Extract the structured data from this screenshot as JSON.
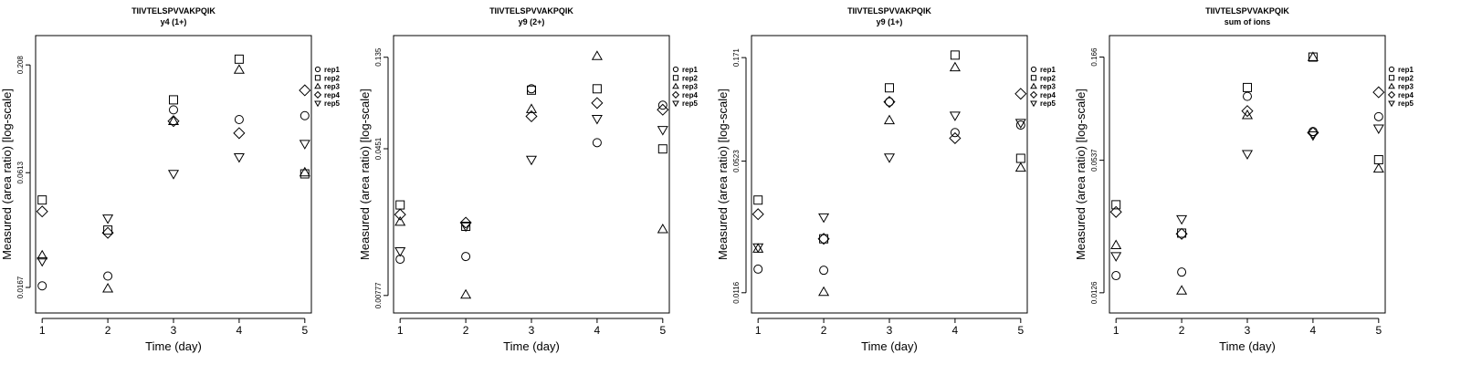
{
  "chart_data": [
    {
      "type": "scatter",
      "title": "TIIVTELSPVVAKPQIK",
      "subtitle": "y4 (1+)",
      "xlabel": "Time (day)",
      "ylabel": "Measured (area ratio) [log-scale]",
      "x_ticks": [
        1,
        2,
        3,
        4,
        5
      ],
      "y_ticks": [
        "0.0167",
        "0.0613",
        "0.208"
      ],
      "y_tick_values": [
        0.0167,
        0.0613,
        0.208
      ],
      "ylim": [
        0.0125,
        0.29
      ],
      "xlim": [
        0.9,
        5.1
      ],
      "legend": [
        "rep1",
        "rep2",
        "rep3",
        "rep4",
        "rep5"
      ],
      "series": [
        {
          "name": "rep1",
          "shape": "circle",
          "values": [
            0.017,
            0.019,
            0.125,
            0.112,
            0.117
          ]
        },
        {
          "name": "rep2",
          "shape": "square",
          "values": [
            0.045,
            0.032,
            0.14,
            0.222,
            0.0605
          ]
        },
        {
          "name": "rep3",
          "shape": "triangle",
          "values": [
            0.024,
            0.0165,
            0.11,
            0.197,
            0.0615
          ]
        },
        {
          "name": "rep4",
          "shape": "diamond",
          "values": [
            0.0395,
            0.031,
            0.11,
            0.096,
            0.156
          ]
        },
        {
          "name": "rep5",
          "shape": "triangle-down",
          "values": [
            0.0225,
            0.0365,
            0.0605,
            0.073,
            0.085
          ]
        }
      ]
    },
    {
      "type": "scatter",
      "title": "TIIVTELSPVVAKPQIK",
      "subtitle": "y9 (2+)",
      "xlabel": "Time (day)",
      "ylabel": "Measured (area ratio) [log-scale]",
      "x_ticks": [
        1,
        2,
        3,
        4,
        5
      ],
      "y_ticks": [
        "0.00777",
        "0.0451",
        "0.135"
      ],
      "y_tick_values": [
        0.00777,
        0.0451,
        0.135
      ],
      "ylim": [
        0.0063,
        0.175
      ],
      "xlim": [
        0.9,
        5.1
      ],
      "legend": [
        "rep1",
        "rep2",
        "rep3",
        "rep4",
        "rep5"
      ],
      "series": [
        {
          "name": "rep1",
          "shape": "circle",
          "values": [
            0.012,
            0.0124,
            0.0925,
            0.0485,
            0.076
          ]
        },
        {
          "name": "rep2",
          "shape": "square",
          "values": [
            0.023,
            0.0178,
            0.091,
            0.0925,
            0.045
          ]
        },
        {
          "name": "rep3",
          "shape": "triangle",
          "values": [
            0.0188,
            0.00785,
            0.0725,
            0.137,
            0.0172
          ]
        },
        {
          "name": "rep4",
          "shape": "diamond",
          "values": [
            0.0205,
            0.0186,
            0.0665,
            0.078,
            0.072
          ]
        },
        {
          "name": "rep5",
          "shape": "triangle-down",
          "values": [
            0.0132,
            0.0178,
            0.0395,
            0.0645,
            0.0565
          ]
        }
      ]
    },
    {
      "type": "scatter",
      "title": "TIIVTELSPVVAKPQIK",
      "subtitle": "y9 (1+)",
      "xlabel": "Time (day)",
      "ylabel": "Measured (area ratio) [log-scale]",
      "x_ticks": [
        1,
        2,
        3,
        4,
        5
      ],
      "y_ticks": [
        "0.0116",
        "0.0523",
        "0.171"
      ],
      "y_tick_values": [
        0.0116,
        0.0523,
        0.171
      ],
      "ylim": [
        0.0092,
        0.22
      ],
      "xlim": [
        0.9,
        5.1
      ],
      "legend": [
        "rep1",
        "rep2",
        "rep3",
        "rep4",
        "rep5"
      ],
      "series": [
        {
          "name": "rep1",
          "shape": "circle",
          "values": [
            0.0152,
            0.015,
            0.103,
            0.0725,
            0.079
          ]
        },
        {
          "name": "rep2",
          "shape": "square",
          "values": [
            0.0335,
            0.0215,
            0.121,
            0.176,
            0.054
          ]
        },
        {
          "name": "rep3",
          "shape": "triangle",
          "values": [
            0.0192,
            0.0117,
            0.0835,
            0.153,
            0.0485
          ]
        },
        {
          "name": "rep4",
          "shape": "diamond",
          "values": [
            0.0285,
            0.0215,
            0.103,
            0.068,
            0.113
          ]
        },
        {
          "name": "rep5",
          "shape": "triangle-down",
          "values": [
            0.0195,
            0.0275,
            0.0545,
            0.088,
            0.081
          ]
        }
      ]
    },
    {
      "type": "scatter",
      "title": "TIIVTELSPVVAKPQIK",
      "subtitle": "sum of ions",
      "xlabel": "Time (day)",
      "ylabel": "Measured (area ratio) [log-scale]",
      "x_ticks": [
        1,
        2,
        3,
        4,
        5
      ],
      "y_ticks": [
        "0.0126",
        "0.0537",
        "0.166"
      ],
      "y_tick_values": [
        0.0126,
        0.0537,
        0.166
      ],
      "ylim": [
        0.0101,
        0.21
      ],
      "xlim": [
        0.9,
        5.1
      ],
      "legend": [
        "rep1",
        "rep2",
        "rep3",
        "rep4",
        "rep5"
      ],
      "series": [
        {
          "name": "rep1",
          "shape": "circle",
          "values": [
            0.0152,
            0.0158,
            0.108,
            0.0735,
            0.0865
          ]
        },
        {
          "name": "rep2",
          "shape": "square",
          "values": [
            0.033,
            0.0242,
            0.119,
            0.166,
            0.054
          ]
        },
        {
          "name": "rep3",
          "shape": "triangle",
          "values": [
            0.0212,
            0.0129,
            0.088,
            0.166,
            0.049
          ]
        },
        {
          "name": "rep4",
          "shape": "diamond",
          "values": [
            0.0305,
            0.024,
            0.092,
            0.0725,
            0.113
          ]
        },
        {
          "name": "rep5",
          "shape": "triangle-down",
          "values": [
            0.0188,
            0.0282,
            0.0575,
            0.0705,
            0.076
          ]
        }
      ]
    }
  ]
}
